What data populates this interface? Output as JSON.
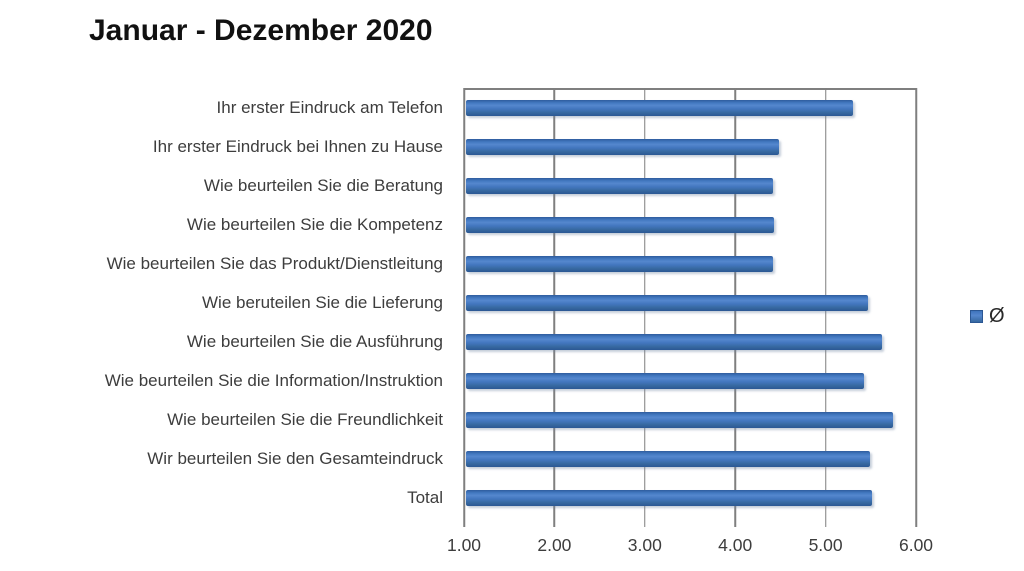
{
  "chart_data": {
    "type": "bar",
    "orientation": "horizontal",
    "title": "Januar - Dezember 2020",
    "categories": [
      "Ihr erster Eindruck am Telefon",
      "Ihr erster Eindruck bei Ihnen zu Hause",
      "Wie beurteilen Sie die Beratung",
      "Wie beurteilen Sie die Kompetenz",
      "Wie beurteilen Sie das Produkt/Dienstleitung",
      "Wie beruteilen Sie die Lieferung",
      "Wie beurteilen Sie die Ausführung",
      "Wie beurteilen Sie die Information/Instruktion",
      "Wie beurteilen Sie die Freundlichkeit",
      "Wir beurteilen Sie den Gesamteindruck",
      "Total"
    ],
    "series": [
      {
        "name": "Ø",
        "values": [
          5.3,
          4.48,
          4.42,
          4.43,
          4.42,
          5.47,
          5.62,
          5.42,
          5.75,
          5.49,
          5.51
        ]
      }
    ],
    "xlabel": "",
    "ylabel": "",
    "xlim": [
      1.0,
      6.0
    ],
    "x_tick_labels": [
      "1.00",
      "2.00",
      "3.00",
      "4.00",
      "5.00",
      "6.00"
    ],
    "x_tick_values": [
      1,
      2,
      3,
      4,
      5,
      6
    ],
    "grid": "vertical",
    "legend_position": "right",
    "colors": {
      "bar": "#3a6db6",
      "bar_light": "#5587ce",
      "bar_dark": "#2b5794",
      "gridline": "#7f7f7f",
      "label_text": "#3d3d3d",
      "title_text": "#111111",
      "background": "#ffffff"
    }
  }
}
